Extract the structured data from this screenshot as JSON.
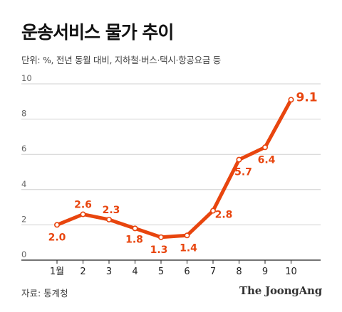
{
  "title": "운송서비스 물가 추이",
  "subtitle": "단위: %, 전년 동월 대비, 지하철·버스·택시·항공요금 등",
  "source": "자료: 통계청",
  "brand": "The JoongAng",
  "colors": {
    "line": "#e8450e",
    "grid": "#d0d0d0",
    "axis": "#222222"
  },
  "chart_data": {
    "type": "line",
    "categories": [
      "1월",
      "2",
      "3",
      "4",
      "5",
      "6",
      "7",
      "8",
      "9",
      "10"
    ],
    "series": [
      {
        "values": [
          2.0,
          2.6,
          2.3,
          1.8,
          1.3,
          1.4,
          2.8,
          5.7,
          6.4,
          9.1
        ]
      }
    ],
    "data_labels": [
      "2.0",
      "2.6",
      "2.3",
      "1.8",
      "1.3",
      "1.4",
      "2.8",
      "5.7",
      "6.4",
      "9.1"
    ],
    "yticks": [
      "0",
      "2",
      "4",
      "6",
      "8",
      "10"
    ],
    "ylim": [
      0,
      10
    ],
    "grid": true
  }
}
